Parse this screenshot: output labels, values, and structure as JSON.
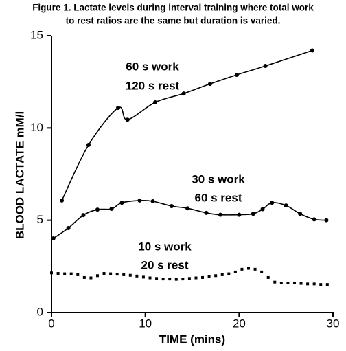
{
  "chart_data": {
    "type": "line",
    "title": [
      "Figure 1. Lactate levels during interval training where total work",
      "to rest ratios are the same but duration is varied."
    ],
    "x_label": "TIME (mins)",
    "y_label": "BLOOD LACTATE mM/l",
    "xlim": [
      0,
      30
    ],
    "ylim": [
      0,
      15
    ],
    "xticks": [
      0,
      10,
      20,
      30
    ],
    "yticks": [
      0,
      5,
      10,
      15
    ],
    "series": [
      {
        "label": [
          "60 s work",
          "120 s rest"
        ],
        "color": "#000000",
        "line": true,
        "x": [
          1.1,
          3.95,
          7.1,
          8.1,
          11.05,
          14.1,
          16.9,
          19.75,
          22.8,
          27.8
        ],
        "values": [
          6.07,
          9.08,
          11.09,
          10.45,
          11.39,
          11.87,
          12.39,
          12.88,
          13.36,
          14.2
        ]
      },
      {
        "label": [
          "30 s work",
          "60 s rest"
        ],
        "color": "#000000",
        "line": true,
        "x": [
          0.2,
          1.8,
          3.4,
          4.9,
          6.4,
          7.5,
          9.4,
          10.8,
          12.8,
          14.5,
          16.5,
          18,
          20,
          21.5,
          22.5,
          23.5,
          25,
          26.5,
          28,
          29.3
        ],
        "values": [
          4.02,
          4.58,
          5.28,
          5.58,
          5.62,
          5.95,
          6.07,
          6.03,
          5.77,
          5.65,
          5.4,
          5.3,
          5.3,
          5.35,
          5.6,
          5.95,
          5.8,
          5.35,
          5.05,
          5.0
        ]
      },
      {
        "label": [
          "10 s work",
          "20 s rest"
        ],
        "color": "#000000",
        "line": false,
        "x": [
          0,
          0.7,
          1.4,
          2.1,
          2.8,
          3.5,
          4.2,
          4.9,
          5.6,
          6.3,
          7,
          7.7,
          8.4,
          9.1,
          9.8,
          10.5,
          11.2,
          11.9,
          12.6,
          13.3,
          14,
          14.7,
          15.4,
          16.1,
          16.8,
          17.5,
          18.2,
          18.9,
          19.6,
          20.3,
          21,
          21.7,
          22.4,
          23.1,
          23.8,
          24.5,
          25.2,
          25.9,
          26.6,
          27.3,
          28,
          28.7,
          29.4
        ],
        "values": [
          2.15,
          2.12,
          2.1,
          2.1,
          2.05,
          1.9,
          1.88,
          2.0,
          2.12,
          2.1,
          2.08,
          2.05,
          2.02,
          1.98,
          1.92,
          1.88,
          1.85,
          1.82,
          1.82,
          1.8,
          1.82,
          1.85,
          1.88,
          1.9,
          1.95,
          2.0,
          2.05,
          2.1,
          2.2,
          2.35,
          2.4,
          2.35,
          2.2,
          1.9,
          1.65,
          1.6,
          1.6,
          1.6,
          1.58,
          1.55,
          1.55,
          1.52,
          1.52
        ]
      }
    ]
  }
}
